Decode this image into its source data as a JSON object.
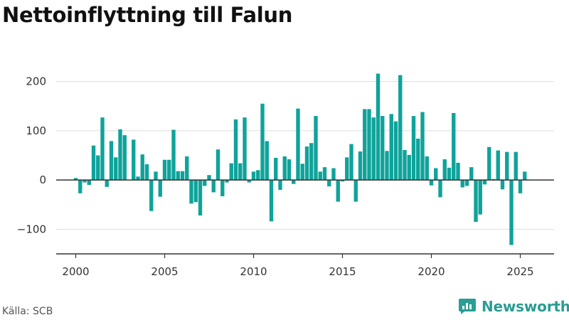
{
  "title": "Nettoinflyttning till Falun",
  "source": "Källa: SCB",
  "brand": "Newsworthy",
  "colors": {
    "bar": "#0fa39a",
    "grid": "#dddddd",
    "axis": "#333333",
    "brand": "#2a9d94"
  },
  "chart_data": {
    "type": "bar",
    "title": "Nettoinflyttning till Falun",
    "xlabel": "",
    "ylabel": "",
    "x_unit": "quarter",
    "x_ticks": [
      "2000",
      "2005",
      "2010",
      "2015",
      "2020",
      "2025"
    ],
    "y_ticks": [
      "−100",
      "0",
      "100",
      "200"
    ],
    "y_tick_values": [
      -100,
      0,
      100,
      200
    ],
    "xlim": [
      1998.9,
      2026.9
    ],
    "ylim": [
      -150,
      250
    ],
    "grid": true,
    "legend": "none",
    "series": [
      {
        "x": [
          2000.0,
          2000.25,
          2000.5,
          2000.75,
          2001.0,
          2001.25,
          2001.5,
          2001.75,
          2002.0,
          2002.25,
          2002.5,
          2002.75,
          2003.0,
          2003.25,
          2003.5,
          2003.75,
          2004.0,
          2004.25,
          2004.5,
          2004.75,
          2005.0,
          2005.25,
          2005.5,
          2005.75,
          2006.0,
          2006.25,
          2006.5,
          2006.75,
          2007.0,
          2007.25,
          2007.5,
          2007.75,
          2008.0,
          2008.25,
          2008.5,
          2008.75,
          2009.0,
          2009.25,
          2009.5,
          2009.75,
          2010.0,
          2010.25,
          2010.5,
          2010.75,
          2011.0,
          2011.25,
          2011.5,
          2011.75,
          2012.0,
          2012.25,
          2012.5,
          2012.75,
          2013.0,
          2013.25,
          2013.5,
          2013.75,
          2014.0,
          2014.25,
          2014.5,
          2014.75,
          2015.0,
          2015.25,
          2015.5,
          2015.75,
          2016.0,
          2016.25,
          2016.5,
          2016.75,
          2017.0,
          2017.25,
          2017.5,
          2017.75,
          2018.0,
          2018.25,
          2018.5,
          2018.75,
          2019.0,
          2019.25,
          2019.5,
          2019.75,
          2020.0,
          2020.25,
          2020.5,
          2020.75,
          2021.0,
          2021.25,
          2021.5,
          2021.75,
          2022.0,
          2022.25,
          2022.5,
          2022.75,
          2023.0,
          2023.25,
          2023.5,
          2023.75,
          2024.0,
          2024.25,
          2024.5,
          2024.75,
          2025.0,
          2025.25
        ],
        "values": [
          4,
          -27,
          -5,
          -10,
          70,
          50,
          127,
          -14,
          79,
          46,
          103,
          91,
          0,
          82,
          7,
          52,
          32,
          -63,
          17,
          -34,
          41,
          41,
          102,
          18,
          18,
          48,
          -48,
          -45,
          -72,
          -12,
          10,
          -25,
          62,
          -33,
          -5,
          34,
          123,
          34,
          127,
          -5,
          17,
          20,
          155,
          79,
          -84,
          45,
          -20,
          48,
          42,
          -8,
          145,
          33,
          68,
          75,
          130,
          17,
          26,
          -13,
          24,
          -44,
          -3,
          46,
          73,
          -44,
          58,
          144,
          144,
          127,
          216,
          130,
          59,
          134,
          119,
          213,
          61,
          51,
          130,
          84,
          138,
          48,
          -11,
          24,
          -35,
          42,
          25,
          136,
          35,
          -15,
          -12,
          26,
          -85,
          -70,
          -9,
          67,
          2,
          60,
          -19,
          57,
          -132,
          57,
          -27,
          17
        ]
      }
    ]
  }
}
